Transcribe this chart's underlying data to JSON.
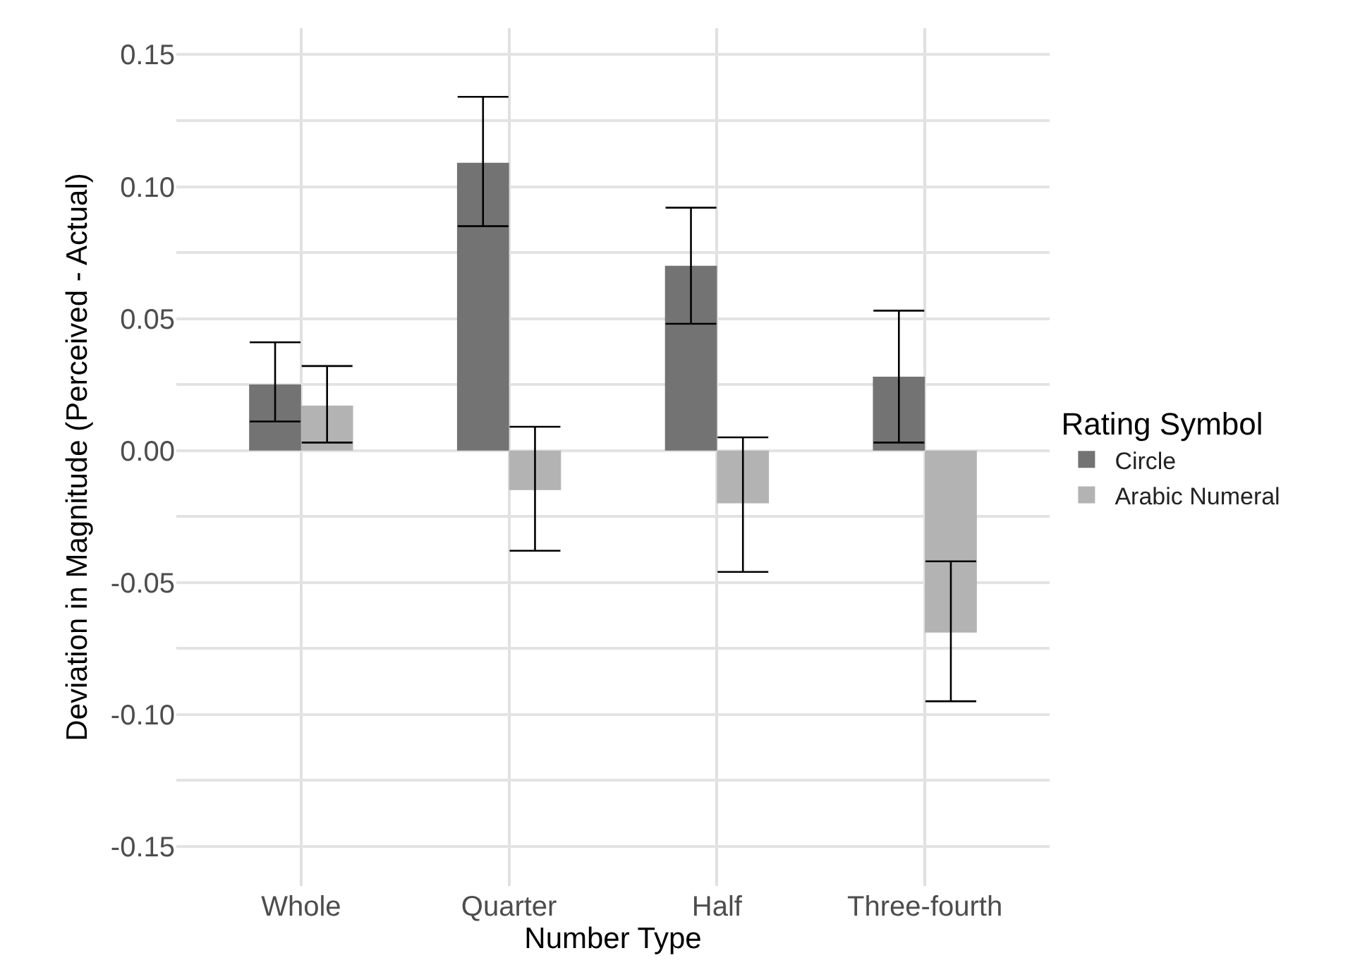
{
  "chart_data": {
    "type": "bar",
    "xlabel": "Number Type",
    "ylabel": "Deviation in Magnitude (Perceived - Actual)",
    "legend_title": "Rating Symbol",
    "categories": [
      "Whole",
      "Quarter",
      "Half",
      "Three-fourth"
    ],
    "series": [
      {
        "name": "Circle",
        "color": "#737373",
        "values": [
          0.025,
          0.109,
          0.07,
          0.028
        ],
        "errors": [
          [
            0.011,
            0.041
          ],
          [
            0.085,
            0.134
          ],
          [
            0.048,
            0.092
          ],
          [
            0.003,
            0.053
          ]
        ]
      },
      {
        "name": "Arabic Numeral",
        "color": "#b3b3b3",
        "values": [
          0.017,
          -0.015,
          -0.02,
          -0.069
        ],
        "errors": [
          [
            0.003,
            0.032
          ],
          [
            -0.038,
            0.009
          ],
          [
            -0.046,
            0.005
          ],
          [
            -0.095,
            -0.042
          ]
        ]
      }
    ],
    "ylim": [
      -0.165,
      0.16
    ],
    "yticks": [
      {
        "value": -0.15,
        "label": "-0.15"
      },
      {
        "value": -0.125,
        "label": null
      },
      {
        "value": -0.1,
        "label": "-0.10"
      },
      {
        "value": -0.075,
        "label": null
      },
      {
        "value": -0.05,
        "label": "-0.05"
      },
      {
        "value": -0.025,
        "label": null
      },
      {
        "value": 0,
        "label": "0.00"
      },
      {
        "value": 0.025,
        "label": null
      },
      {
        "value": 0.05,
        "label": "0.05"
      },
      {
        "value": 0.075,
        "label": null
      },
      {
        "value": 0.1,
        "label": "0.10"
      },
      {
        "value": 0.125,
        "label": null
      },
      {
        "value": 0.15,
        "label": "0.15"
      }
    ],
    "grid": true,
    "legend": "right"
  }
}
